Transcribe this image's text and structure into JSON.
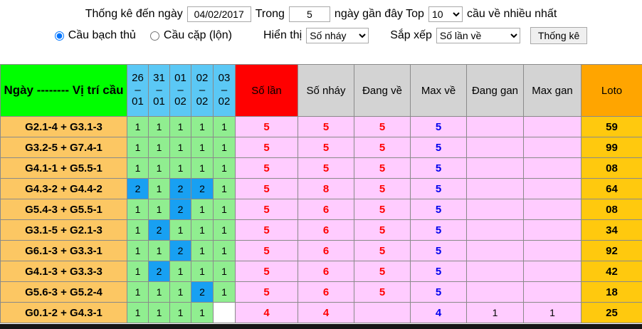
{
  "controls": {
    "line1": {
      "label_date": "Thống kê đến ngày",
      "date_value": "04/02/2017",
      "label_trong": "Trong",
      "days_value": "5",
      "label_top": "ngày gần đây Top",
      "top_value": "10",
      "label_suffix": "cầu về nhiều nhất"
    },
    "line2": {
      "radio_bach_thu": "Cầu bạch thủ",
      "radio_cap_lon": "Cầu cặp (lộn)",
      "label_hien_thi": "Hiển thị",
      "hien_thi_value": "Số nháy",
      "label_sap_xep": "Sắp xếp",
      "sap_xep_value": "Số lần về",
      "button_label": "Thống kê"
    }
  },
  "table": {
    "header": {
      "col_position": "Ngày -------- Vị trí cầu",
      "dates": [
        {
          "d": "26",
          "sep": "–",
          "m": "01"
        },
        {
          "d": "31",
          "sep": "–",
          "m": "01"
        },
        {
          "d": "01",
          "sep": "–",
          "m": "02"
        },
        {
          "d": "02",
          "sep": "–",
          "m": "02"
        },
        {
          "d": "03",
          "sep": "–",
          "m": "02"
        }
      ],
      "col_so_lan": "Số lần",
      "col_so_nhay": "Số nháy",
      "col_dang_ve": "Đang về",
      "col_max_ve": "Max về",
      "col_dang_gan": "Đang gan",
      "col_max_gan": "Max gan",
      "col_loto": "Loto"
    },
    "rows": [
      {
        "label": "G2.1-4 + G3.1-3",
        "days": [
          "1",
          "1",
          "1",
          "1",
          "1"
        ],
        "so_lan": "5",
        "so_nhay": "5",
        "dang_ve": "5",
        "max_ve": "5",
        "dang_gan": "",
        "max_gan": "",
        "loto": "59"
      },
      {
        "label": "G3.2-5 + G7.4-1",
        "days": [
          "1",
          "1",
          "1",
          "1",
          "1"
        ],
        "so_lan": "5",
        "so_nhay": "5",
        "dang_ve": "5",
        "max_ve": "5",
        "dang_gan": "",
        "max_gan": "",
        "loto": "99"
      },
      {
        "label": "G4.1-1 + G5.5-1",
        "days": [
          "1",
          "1",
          "1",
          "1",
          "1"
        ],
        "so_lan": "5",
        "so_nhay": "5",
        "dang_ve": "5",
        "max_ve": "5",
        "dang_gan": "",
        "max_gan": "",
        "loto": "08"
      },
      {
        "label": "G4.3-2 + G4.4-2",
        "days": [
          "2",
          "1",
          "2",
          "2",
          "1"
        ],
        "so_lan": "5",
        "so_nhay": "8",
        "dang_ve": "5",
        "max_ve": "5",
        "dang_gan": "",
        "max_gan": "",
        "loto": "64"
      },
      {
        "label": "G5.4-3 + G5.5-1",
        "days": [
          "1",
          "1",
          "2",
          "1",
          "1"
        ],
        "so_lan": "5",
        "so_nhay": "6",
        "dang_ve": "5",
        "max_ve": "5",
        "dang_gan": "",
        "max_gan": "",
        "loto": "08"
      },
      {
        "label": "G3.1-5 + G2.1-3",
        "days": [
          "1",
          "2",
          "1",
          "1",
          "1"
        ],
        "so_lan": "5",
        "so_nhay": "6",
        "dang_ve": "5",
        "max_ve": "5",
        "dang_gan": "",
        "max_gan": "",
        "loto": "34"
      },
      {
        "label": "G6.1-3 + G3.3-1",
        "days": [
          "1",
          "1",
          "2",
          "1",
          "1"
        ],
        "so_lan": "5",
        "so_nhay": "6",
        "dang_ve": "5",
        "max_ve": "5",
        "dang_gan": "",
        "max_gan": "",
        "loto": "92"
      },
      {
        "label": "G4.1-3 + G3.3-3",
        "days": [
          "1",
          "2",
          "1",
          "1",
          "1"
        ],
        "so_lan": "5",
        "so_nhay": "6",
        "dang_ve": "5",
        "max_ve": "5",
        "dang_gan": "",
        "max_gan": "",
        "loto": "42"
      },
      {
        "label": "G5.6-3 + G5.2-4",
        "days": [
          "1",
          "1",
          "1",
          "2",
          "1"
        ],
        "so_lan": "5",
        "so_nhay": "6",
        "dang_ve": "5",
        "max_ve": "5",
        "dang_gan": "",
        "max_gan": "",
        "loto": "18"
      },
      {
        "label": "G0.1-2 + G4.3-1",
        "days": [
          "1",
          "1",
          "1",
          "1",
          ""
        ],
        "so_lan": "4",
        "so_nhay": "4",
        "dang_ve": "",
        "max_ve": "4",
        "dang_gan": "1",
        "max_gan": "1",
        "loto": "25"
      }
    ]
  },
  "colors": {
    "header_green": "#00ff00",
    "header_blue": "#5bc8f5",
    "header_red": "#ff0000",
    "header_gray": "#d3d3d3",
    "header_orange": "#ffa500",
    "row_label_orange": "#fcc763",
    "day_green": "#90ee90",
    "day_blue": "#18a0f2",
    "stat_pink": "#ffccff",
    "loto_gold": "#ffc90e",
    "value_red": "#ff0000",
    "value_blue": "#0000ee"
  }
}
